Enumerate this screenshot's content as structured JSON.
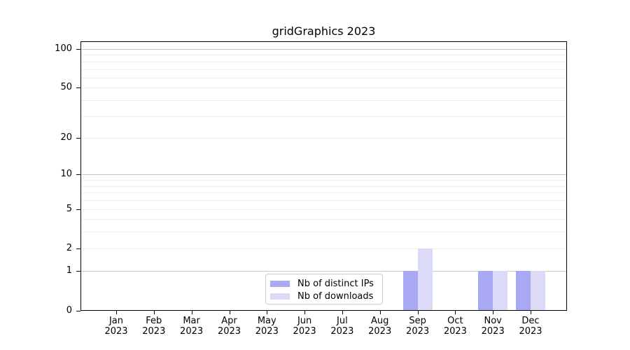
{
  "chart_data": {
    "type": "bar",
    "title": "gridGraphics 2023",
    "x_year": "2023",
    "months": [
      "Jan",
      "Feb",
      "Mar",
      "Apr",
      "May",
      "Jun",
      "Jul",
      "Aug",
      "Sep",
      "Oct",
      "Nov",
      "Dec"
    ],
    "series": [
      {
        "name": "Nb of distinct IPs",
        "color": "#a8a8f5",
        "values": [
          0,
          0,
          0,
          0,
          0,
          0,
          0,
          0,
          1,
          0,
          1,
          1
        ]
      },
      {
        "name": "Nb of downloads",
        "color": "#dbdbf8",
        "values": [
          0,
          0,
          0,
          0,
          0,
          0,
          0,
          0,
          2,
          0,
          1,
          1
        ]
      }
    ],
    "y_axis": {
      "scale": "log1p",
      "ticks": [
        0,
        1,
        2,
        5,
        10,
        20,
        50,
        100
      ],
      "ylim": [
        0,
        115
      ],
      "gridlines_major": [
        1,
        10,
        100
      ],
      "gridlines_minor": [
        2,
        3,
        4,
        5,
        6,
        7,
        8,
        9,
        20,
        30,
        40,
        50,
        60,
        70,
        80,
        90
      ]
    },
    "grid": "horizontal gridlines on",
    "legend_position": "lower center inside plot"
  },
  "legend": {
    "items": [
      {
        "label": "Nb of distinct IPs",
        "color": "#a8a8f5"
      },
      {
        "label": "Nb of downloads",
        "color": "#dbdbf8"
      }
    ]
  },
  "colors": {
    "background": "#ffffff",
    "axis": "#000000",
    "text": "#000000",
    "grid_major": "#c9c9c9",
    "grid_minor": "#ececec",
    "legend_border": "#cbcbcb",
    "bar_distinct_ips": "#a8a8f5",
    "bar_downloads": "#dbdbf8"
  }
}
